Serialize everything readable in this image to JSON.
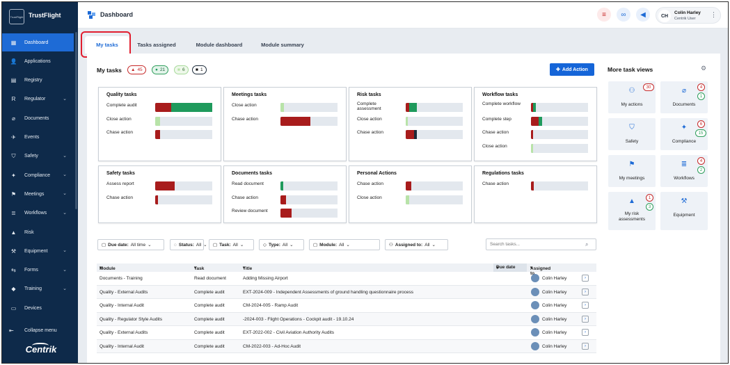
{
  "app": {
    "brand": "TrustFlight",
    "logo_text": "TrustFlight",
    "footer_logo": "Centrik"
  },
  "sidebar": {
    "items": [
      {
        "label": "Dashboard",
        "icon": "dashboard-icon",
        "glyph": "▦",
        "chev": ""
      },
      {
        "label": "Applications",
        "icon": "person-icon",
        "glyph": "👤",
        "chev": ""
      },
      {
        "label": "Registry",
        "icon": "registry-icon",
        "glyph": "▤",
        "chev": ""
      },
      {
        "label": "Regulator",
        "icon": "regulator-icon",
        "glyph": "R",
        "chev": "⌄"
      },
      {
        "label": "Documents",
        "icon": "paperclip-icon",
        "glyph": "⌀",
        "chev": ""
      },
      {
        "label": "Events",
        "icon": "events-icon",
        "glyph": "✈",
        "chev": ""
      },
      {
        "label": "Safety",
        "icon": "shield-icon",
        "glyph": "⛉",
        "chev": "⌄"
      },
      {
        "label": "Compliance",
        "icon": "compliance-icon",
        "glyph": "✦",
        "chev": "⌄"
      },
      {
        "label": "Meetings",
        "icon": "meetings-icon",
        "glyph": "⚑",
        "chev": "⌄"
      },
      {
        "label": "Workflows",
        "icon": "workflows-icon",
        "glyph": "≣",
        "chev": "⌄"
      },
      {
        "label": "Risk",
        "icon": "risk-icon",
        "glyph": "▲",
        "chev": ""
      },
      {
        "label": "Equipment",
        "icon": "wrench-icon",
        "glyph": "⚒",
        "chev": "⌄"
      },
      {
        "label": "Forms",
        "icon": "forms-icon",
        "glyph": "⇆",
        "chev": "⌄"
      },
      {
        "label": "Training",
        "icon": "graduation-icon",
        "glyph": "◆",
        "chev": "⌄"
      },
      {
        "label": "Devices",
        "icon": "devices-icon",
        "glyph": "▭",
        "chev": ""
      }
    ],
    "collapse_label": "Collapse menu",
    "collapse_glyph": "⇤"
  },
  "header": {
    "title": "Dashboard",
    "user_name": "Colin Harley",
    "user_role": "Centrik User",
    "initials": "CH"
  },
  "tabs": [
    "My tasks",
    "Tasks assigned",
    "Module dashboard",
    "Module summary"
  ],
  "mytasks": {
    "title": "My tasks",
    "counts": {
      "red": "45",
      "green": "21",
      "light": "6",
      "dark": "1"
    },
    "add_label": "Add Action"
  },
  "colors": {
    "red": "#a81c1c",
    "green": "#1f9a5c",
    "light": "#b8e3a8",
    "dark": "#1c2b3a",
    "track": "#e3e8ee",
    "accent": "#1565d8"
  },
  "cards": [
    {
      "title": "Quality tasks",
      "rows": [
        {
          "label": "Complete audit",
          "segs": [
            {
              "c": "red",
              "v": 0.28
            },
            {
              "c": "green",
              "v": 0.72
            }
          ]
        },
        {
          "label": "Close action",
          "segs": [
            {
              "c": "light",
              "v": 0.08
            }
          ]
        },
        {
          "label": "Chase action",
          "segs": [
            {
              "c": "red",
              "v": 0.09
            }
          ]
        }
      ]
    },
    {
      "title": "Meetings tasks",
      "rows": [
        {
          "label": "Close action",
          "segs": [
            {
              "c": "light",
              "v": 0.06
            }
          ]
        },
        {
          "label": "Chase action",
          "segs": [
            {
              "c": "red",
              "v": 0.52
            }
          ]
        }
      ]
    },
    {
      "title": "Risk tasks",
      "rows": [
        {
          "label": "Complete assessment",
          "segs": [
            {
              "c": "red",
              "v": 0.06
            },
            {
              "c": "green",
              "v": 0.13
            }
          ]
        },
        {
          "label": "Close action",
          "segs": [
            {
              "c": "light",
              "v": 0.04
            }
          ]
        },
        {
          "label": "Chase action",
          "segs": [
            {
              "c": "red",
              "v": 0.15
            },
            {
              "c": "dark",
              "v": 0.04
            }
          ]
        }
      ]
    },
    {
      "title": "Workflow tasks",
      "rows": [
        {
          "label": "Complete workflow",
          "segs": [
            {
              "c": "red",
              "v": 0.04
            },
            {
              "c": "green",
              "v": 0.05
            }
          ]
        },
        {
          "label": "Complete step",
          "segs": [
            {
              "c": "red",
              "v": 0.14
            },
            {
              "c": "green",
              "v": 0.05
            }
          ]
        },
        {
          "label": "Chase action",
          "segs": [
            {
              "c": "red",
              "v": 0.04
            }
          ]
        },
        {
          "label": "Close action",
          "segs": [
            {
              "c": "light",
              "v": 0.04
            }
          ]
        }
      ]
    },
    {
      "title": "Safety tasks",
      "rows": [
        {
          "label": "Assess report",
          "segs": [
            {
              "c": "red",
              "v": 0.34
            }
          ]
        },
        {
          "label": "Chase action",
          "segs": [
            {
              "c": "red",
              "v": 0.05
            }
          ]
        }
      ]
    },
    {
      "title": "Documents tasks",
      "rows": [
        {
          "label": "Read document",
          "segs": [
            {
              "c": "green",
              "v": 0.05
            }
          ]
        },
        {
          "label": "Chase action",
          "segs": [
            {
              "c": "red",
              "v": 0.1
            }
          ]
        },
        {
          "label": "Review document",
          "segs": [
            {
              "c": "red",
              "v": 0.2
            }
          ]
        }
      ]
    },
    {
      "title": "Personal Actions",
      "rows": [
        {
          "label": "Chase action",
          "segs": [
            {
              "c": "red",
              "v": 0.1
            }
          ]
        },
        {
          "label": "Close action",
          "segs": [
            {
              "c": "light",
              "v": 0.06
            }
          ]
        }
      ]
    },
    {
      "title": "Regulations tasks",
      "rows": [
        {
          "label": "Chase action",
          "segs": [
            {
              "c": "red",
              "v": 0.05
            }
          ]
        }
      ]
    }
  ],
  "filters": [
    {
      "icon": "calendar-icon",
      "glyph": "▢",
      "label": "Due date:",
      "value": "All time"
    },
    {
      "icon": "status-icon",
      "glyph": "◌",
      "label": "Status:",
      "value": "All"
    },
    {
      "icon": "task-icon",
      "glyph": "▢",
      "label": "Task:",
      "value": "All"
    },
    {
      "icon": "tag-icon",
      "glyph": "◇",
      "label": "Type:",
      "value": "All"
    },
    {
      "icon": "module-icon",
      "glyph": "▢",
      "label": "Module:",
      "value": "All"
    },
    {
      "icon": "user-icon",
      "glyph": "⚇",
      "label": "Assigned to:",
      "value": "All"
    }
  ],
  "search": {
    "placeholder": "Search tasks..."
  },
  "table": {
    "headers": {
      "module": "Module",
      "task": "Task",
      "title": "Title",
      "due": "Due date",
      "assigned": "Assigned to"
    },
    "rows": [
      {
        "module": "Documents - Training",
        "task": "Read document",
        "title": "Adding Missing Airport",
        "due": "",
        "assigned": "Colin Harley"
      },
      {
        "module": "Quality - External Audits",
        "task": "Complete audit",
        "title": "EXT-2024-009 - Independent Assessments of ground handling questionnaire process",
        "due": "",
        "assigned": "Colin Harley"
      },
      {
        "module": "Quality - Internal Audit",
        "task": "Complete audit",
        "title": "CM-2024-005 - Ramp Audit",
        "due": "",
        "assigned": "Colin Harley"
      },
      {
        "module": "Quality - Regulator Style Audits",
        "task": "Complete audit",
        "title": "-2024-003 - Flight Operations - Cockpit audit - 19.10.24",
        "due": "",
        "assigned": "Colin Harley"
      },
      {
        "module": "Quality - External Audits",
        "task": "Complete audit",
        "title": "EXT-2022-002 - Civil Aviation Authority Audits",
        "due": "",
        "assigned": "Colin Harley"
      },
      {
        "module": "Quality - Internal Audit",
        "task": "Complete audit",
        "title": "CM-2022-003 - Ad-Hoc Audit",
        "due": "",
        "assigned": "Colin Harley"
      }
    ]
  },
  "views": {
    "title": "More task views",
    "tiles": [
      {
        "label": "My actions",
        "icon": "my-actions-icon",
        "glyph": "⚇",
        "badges": [
          {
            "v": "30",
            "c": "red"
          }
        ]
      },
      {
        "label": "Documents",
        "icon": "paperclip-icon",
        "glyph": "⌀",
        "badges": [
          {
            "v": "4",
            "c": "red"
          },
          {
            "v": "1",
            "c": "green"
          }
        ]
      },
      {
        "label": "Safety",
        "icon": "shield-icon",
        "glyph": "⛉",
        "badges": []
      },
      {
        "label": "Compliance",
        "icon": "compliance-icon",
        "glyph": "✦",
        "badges": [
          {
            "v": "6",
            "c": "red"
          },
          {
            "v": "15",
            "c": "green"
          }
        ]
      },
      {
        "label": "My meetings",
        "icon": "meetings-icon",
        "glyph": "⚑",
        "badges": []
      },
      {
        "label": "Workflows",
        "icon": "workflows-icon",
        "glyph": "≣",
        "badges": [
          {
            "v": "4",
            "c": "red"
          },
          {
            "v": "2",
            "c": "green"
          }
        ]
      },
      {
        "label": "My risk assessments",
        "icon": "risk-icon",
        "glyph": "▲",
        "badges": [
          {
            "v": "1",
            "c": "red"
          },
          {
            "v": "3",
            "c": "green"
          }
        ]
      },
      {
        "label": "Equipment",
        "icon": "wrench-icon",
        "glyph": "⚒",
        "badges": []
      }
    ]
  }
}
